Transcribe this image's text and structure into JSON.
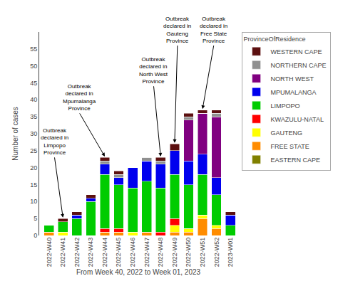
{
  "chart_data": {
    "type": "bar",
    "stacked": true,
    "categories": [
      "2022-W40",
      "2022-W41",
      "2022-W42",
      "2022-W43",
      "2022-W44",
      "2022-W45",
      "2022-W46",
      "2022-W47",
      "2022-W48",
      "2022-W49",
      "2022-W50",
      "2022-W51",
      "2022-W52",
      "2023-W01"
    ],
    "series": [
      {
        "name": "EASTERN CAPE",
        "color": "#808000",
        "values": [
          0,
          0,
          0,
          0,
          0,
          0,
          0,
          0,
          0,
          0,
          0,
          0,
          0,
          0
        ]
      },
      {
        "name": "FREE STATE",
        "color": "#ff8c00",
        "values": [
          1,
          0,
          0,
          0,
          1,
          1,
          0,
          1,
          0,
          1,
          1,
          5,
          2,
          0
        ]
      },
      {
        "name": "GAUTENG",
        "color": "#ffff00",
        "values": [
          0,
          1,
          0,
          0,
          0,
          0,
          1,
          0,
          0,
          2,
          1,
          1,
          1,
          0
        ]
      },
      {
        "name": "KWAZULU-NATAL",
        "color": "#ff0000",
        "values": [
          0,
          0,
          0,
          0,
          1,
          1,
          0,
          0,
          1,
          2,
          0,
          0,
          0,
          0
        ]
      },
      {
        "name": "LIMPOPO",
        "color": "#00cc00",
        "values": [
          2,
          3,
          5,
          10,
          16,
          13,
          13,
          15,
          13,
          13,
          13,
          12,
          9,
          3
        ]
      },
      {
        "name": "MPUMALANGA",
        "color": "#0000ee",
        "values": [
          0,
          0,
          1,
          1,
          3,
          2,
          6,
          6,
          7,
          7,
          7,
          6,
          5,
          3
        ]
      },
      {
        "name": "NORTH WEST",
        "color": "#800080",
        "values": [
          0,
          0,
          0,
          0,
          0,
          0,
          0,
          0,
          0,
          0,
          12,
          12,
          18,
          0
        ]
      },
      {
        "name": "NORTHERN CAPE",
        "color": "#909090",
        "values": [
          0,
          0,
          0,
          0,
          1,
          1,
          0,
          1,
          1,
          0,
          1,
          0,
          1,
          0
        ]
      },
      {
        "name": "WESTERN CAPE",
        "color": "#5c1010",
        "values": [
          0,
          1,
          1,
          1,
          1,
          1,
          0,
          0,
          1,
          2,
          1,
          1,
          1,
          1
        ]
      }
    ],
    "xlabel": "From Week 40, 2022 to Week 01, 2023",
    "ylabel": "Number of cases",
    "ylim": [
      0,
      60
    ],
    "yticks": [
      0,
      5,
      10,
      15,
      20,
      25,
      30,
      35,
      40,
      45,
      50,
      55
    ],
    "grid": false,
    "legend": "right",
    "legend_title": "ProvinceOfResidence",
    "annotations": [
      {
        "text": "Outbreak\ndeclared in\nLimpopo\nProvince",
        "x": "2022-W41"
      },
      {
        "text": "Outbreak\ndeclared in\nMpumalanga\nProvince",
        "x": "2022-W44"
      },
      {
        "text": "Outbreak\ndeclared in\nNorth West\nProvince",
        "x": "2022-W48"
      },
      {
        "text": "Outbreak\ndeclared in\nGauteng\nProvince",
        "x": "2022-W49"
      },
      {
        "text": "Outbreak\ndeclared in\nFree State\nProvince",
        "x": "2022-W51"
      }
    ]
  }
}
